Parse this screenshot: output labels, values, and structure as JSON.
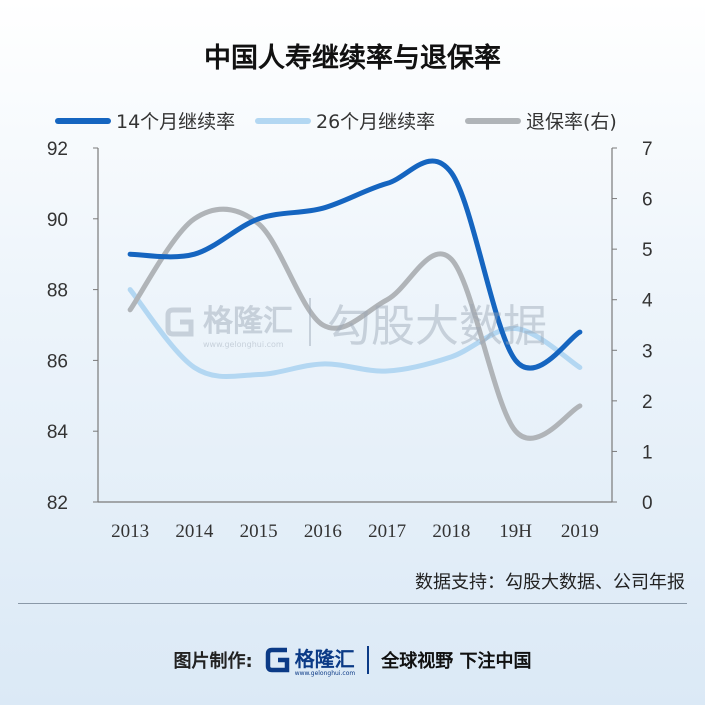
{
  "chart_data": {
    "type": "line",
    "title": "中国人寿继续率与退保率",
    "categories": [
      "2013",
      "2014",
      "2015",
      "2016",
      "2017",
      "2018",
      "19H",
      "2019"
    ],
    "series": [
      {
        "name": "14个月继续率",
        "axis": "left",
        "color": "#1565c0",
        "values": [
          89.0,
          89.0,
          90.0,
          90.3,
          91.0,
          91.3,
          86.0,
          86.8
        ]
      },
      {
        "name": "26个月继续率",
        "axis": "left",
        "color": "#b3d7f2",
        "values": [
          88.0,
          85.8,
          85.6,
          85.9,
          85.7,
          86.1,
          86.9,
          85.8
        ]
      },
      {
        "name": "退保率(右)",
        "axis": "right",
        "color": "#b0b4b8",
        "values": [
          3.8,
          5.6,
          5.5,
          3.5,
          4.0,
          4.8,
          1.4,
          1.9
        ]
      }
    ],
    "y_left": {
      "min": 82,
      "max": 92,
      "ticks": [
        "82",
        "84",
        "86",
        "88",
        "90",
        "92"
      ]
    },
    "y_right": {
      "min": 0,
      "max": 7,
      "ticks": [
        "0",
        "1",
        "2",
        "3",
        "4",
        "5",
        "6",
        "7"
      ]
    },
    "grid": false,
    "legend": "top"
  },
  "source_note": "数据支持：勾股大数据、公司年报",
  "footer": {
    "label": "图片制作:",
    "logo_text": "格隆汇",
    "logo_sub": "www.gelonghui.com",
    "slogan": "全球视野 下注中国"
  },
  "watermark": {
    "brand": "格隆汇",
    "brand_sub": "www.gelonghui.com",
    "text": "勾股大数据"
  }
}
